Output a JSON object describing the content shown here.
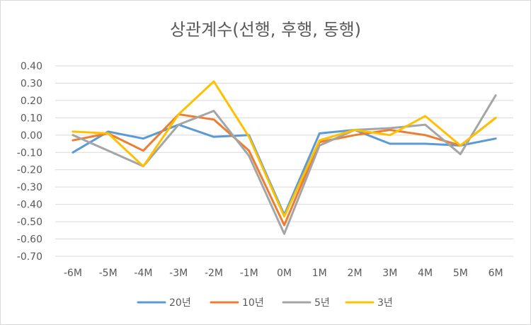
{
  "chart_data": {
    "type": "line",
    "title": "상관계수(선행, 후행, 동행)",
    "categories": [
      "-6M",
      "-5M",
      "-4M",
      "-3M",
      "-2M",
      "-1M",
      "0M",
      "1M",
      "2M",
      "3M",
      "4M",
      "5M",
      "6M"
    ],
    "ylim": [
      -0.7,
      0.4
    ],
    "yticks": [
      "0.40",
      "0.30",
      "0.20",
      "0.10",
      "0.00",
      "-0.10",
      "-0.20",
      "-0.30",
      "-0.40",
      "-0.50",
      "-0.60",
      "-0.70"
    ],
    "grid": true,
    "legend_position": "bottom",
    "series": [
      {
        "name": "20년",
        "color": "#5b9bd5",
        "values": [
          -0.1,
          0.02,
          -0.02,
          0.06,
          -0.01,
          0.0,
          -0.46,
          0.01,
          0.03,
          -0.05,
          -0.05,
          -0.06,
          -0.02
        ]
      },
      {
        "name": "10년",
        "color": "#ed7d31",
        "values": [
          -0.03,
          0.01,
          -0.09,
          0.12,
          0.09,
          -0.09,
          -0.52,
          -0.04,
          0.0,
          0.03,
          0.0,
          -0.06,
          0.1
        ]
      },
      {
        "name": "5년",
        "color": "#a5a5a5",
        "values": [
          0.0,
          -0.09,
          -0.18,
          0.06,
          0.14,
          -0.12,
          -0.57,
          -0.06,
          0.03,
          0.04,
          0.06,
          -0.11,
          0.23
        ]
      },
      {
        "name": "3년",
        "color": "#ffc000",
        "values": [
          0.02,
          0.01,
          -0.18,
          0.12,
          0.31,
          -0.01,
          -0.47,
          -0.03,
          0.03,
          0.0,
          0.11,
          -0.06,
          0.1
        ]
      }
    ]
  }
}
